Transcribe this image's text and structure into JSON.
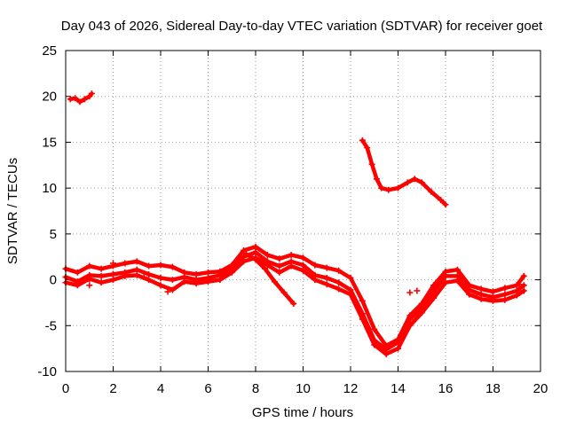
{
  "chart_data": {
    "type": "scatter",
    "title": "Day 043 of 2026, Sidereal Day-to-day VTEC variation (SDTVAR) for receiver goet",
    "xlabel": "GPS time / hours",
    "ylabel": "SDTVAR / TECUs",
    "xlim": [
      0,
      20
    ],
    "ylim": [
      -10,
      25
    ],
    "xticks": [
      0,
      2,
      4,
      6,
      8,
      10,
      12,
      14,
      16,
      18,
      20
    ],
    "xtick_labels": [
      "0",
      "2",
      "4",
      "6",
      "8",
      "10",
      "12",
      "14",
      "16",
      "18",
      "20"
    ],
    "yticks": [
      -10,
      -5,
      0,
      5,
      10,
      15,
      20,
      25
    ],
    "ytick_labels": [
      "-10",
      "-5",
      "0",
      "5",
      "10",
      "15",
      "20",
      "25"
    ],
    "grid": true,
    "marker": "plus",
    "color": "#ff0000",
    "series": [
      {
        "name": "upper-early",
        "x": [
          0.2,
          0.4,
          0.6,
          0.8,
          1.0,
          1.1
        ],
        "y": [
          19.7,
          19.8,
          19.4,
          19.7,
          20.0,
          20.3
        ]
      },
      {
        "name": "upper-late",
        "x": [
          12.5,
          12.7,
          12.9,
          13.1,
          13.3,
          13.6,
          14.0,
          14.4,
          14.7,
          15.0,
          15.4,
          15.8,
          16.0
        ],
        "y": [
          15.2,
          14.4,
          12.6,
          11.0,
          10.0,
          9.8,
          10.0,
          10.6,
          11.0,
          10.6,
          9.6,
          8.7,
          8.2
        ]
      },
      {
        "name": "track-a",
        "x": [
          0.0,
          0.5,
          1.0,
          1.5,
          2.0,
          2.5,
          3.0,
          3.5,
          4.0,
          4.5,
          5.0,
          5.5,
          6.0,
          6.5,
          7.0,
          7.5,
          8.0,
          8.5,
          9.0,
          9.5,
          10.0,
          10.5,
          11.0,
          11.5,
          12.0,
          12.5,
          13.0,
          13.5,
          14.0,
          14.5,
          15.0,
          15.5,
          16.0,
          16.5,
          17.0,
          17.5,
          18.0,
          18.5,
          19.0,
          19.3
        ],
        "y": [
          1.2,
          0.8,
          1.5,
          1.2,
          1.5,
          1.8,
          2.0,
          1.5,
          1.6,
          1.4,
          0.8,
          0.6,
          0.8,
          0.9,
          1.6,
          3.2,
          3.6,
          2.7,
          2.3,
          2.7,
          2.4,
          1.6,
          1.3,
          1.0,
          0.2,
          -2.3,
          -5.4,
          -7.2,
          -6.5,
          -3.9,
          -2.6,
          -0.6,
          0.9,
          1.1,
          -0.6,
          -1.0,
          -1.3,
          -0.9,
          -0.6,
          0.4
        ]
      },
      {
        "name": "track-b",
        "x": [
          0.0,
          0.5,
          1.0,
          1.5,
          2.0,
          2.5,
          3.0,
          3.5,
          4.0,
          4.5,
          5.0,
          5.5,
          6.0,
          6.5,
          7.0,
          7.5,
          8.0,
          8.5,
          9.0,
          9.5,
          10.0,
          10.5,
          11.0,
          11.5,
          12.0,
          12.5,
          13.0,
          13.5,
          14.0,
          14.5,
          15.0,
          15.5,
          16.0,
          16.5,
          17.0,
          17.5,
          18.0,
          18.5,
          19.0,
          19.3
        ],
        "y": [
          0.3,
          -0.2,
          0.5,
          0.4,
          0.6,
          0.8,
          1.1,
          0.6,
          0.2,
          0.0,
          0.3,
          0.0,
          0.2,
          0.5,
          1.2,
          2.5,
          3.0,
          2.0,
          1.5,
          2.0,
          1.6,
          0.5,
          0.2,
          -0.3,
          -1.1,
          -3.7,
          -6.6,
          -7.6,
          -6.8,
          -4.3,
          -3.1,
          -1.3,
          0.4,
          0.4,
          -1.1,
          -1.6,
          -1.9,
          -1.6,
          -1.2,
          -0.6
        ]
      },
      {
        "name": "track-c",
        "x": [
          0.0,
          0.5,
          1.0,
          1.5,
          2.0,
          2.5,
          3.0,
          3.5,
          4.0,
          4.5,
          5.0,
          5.5,
          6.0,
          6.5,
          7.0,
          7.5,
          8.0,
          8.5,
          9.0,
          9.5,
          10.0,
          10.5,
          11.0,
          11.5,
          12.0,
          12.5,
          13.0,
          13.5,
          14.0,
          14.5,
          15.0,
          15.5,
          16.0,
          16.5,
          17.0,
          17.5,
          18.0,
          18.5,
          19.0,
          19.3
        ],
        "y": [
          -0.3,
          -0.6,
          0.1,
          -0.3,
          0.0,
          0.4,
          0.5,
          0.0,
          -0.6,
          -1.1,
          -0.2,
          -0.4,
          -0.2,
          0.0,
          0.8,
          2.0,
          2.4,
          1.6,
          0.8,
          1.5,
          1.0,
          0.0,
          -0.5,
          -1.0,
          -1.6,
          -4.3,
          -7.1,
          -8.1,
          -7.5,
          -5.0,
          -3.6,
          -2.0,
          -0.3,
          -0.1,
          -1.6,
          -2.1,
          -2.3,
          -2.2,
          -1.7,
          -1.2
        ]
      },
      {
        "name": "descending-branch",
        "x": [
          7.6,
          8.0,
          8.4,
          8.8,
          9.2,
          9.6
        ],
        "y": [
          2.8,
          2.2,
          1.2,
          -0.2,
          -1.4,
          -2.6
        ]
      },
      {
        "name": "scatter-points",
        "x": [
          1.0,
          2.0,
          3.3,
          4.3,
          14.5,
          14.8,
          17.3,
          19.1
        ],
        "y": [
          -0.6,
          1.8,
          0.3,
          -1.3,
          -1.4,
          -1.2,
          -1.5,
          -0.5
        ]
      }
    ]
  }
}
